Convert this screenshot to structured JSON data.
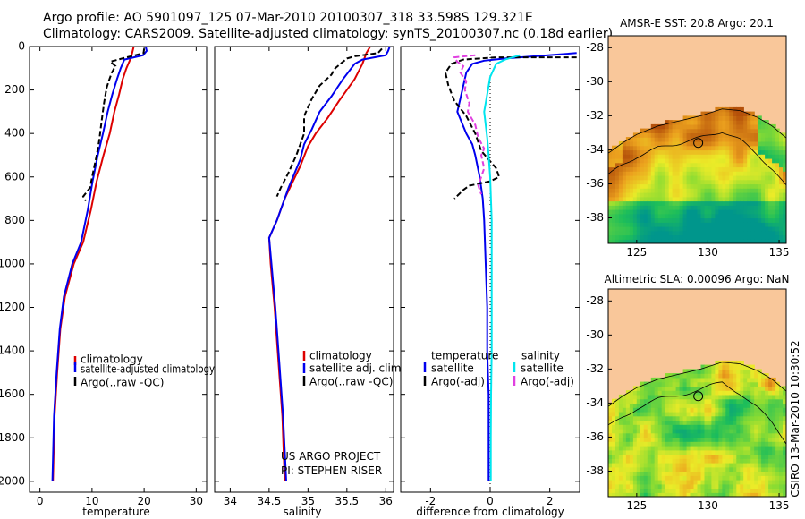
{
  "header": {
    "line1": "Argo profile: AO 5901097_125 07-Mar-2010 20100307_318 33.598S 129.321E",
    "line2": "Climatology: CARS2009. Satellite-adjusted climatology: synTS_20100307.nc (0.18d earlier)"
  },
  "credit": "CSIRO 13-Mar-2010 10:30:52",
  "colors": {
    "climatology": "#dd0000",
    "satellite": "#0000ee",
    "argo": "#000000",
    "salinity_sat": "#00e5ee",
    "salinity_argo": "#e040e0",
    "land": "#f9c79a"
  },
  "chart_data": [
    {
      "type": "line",
      "id": "temperature",
      "xlabel": "temperature",
      "ylabel": "",
      "xlim": [
        -2,
        32
      ],
      "ylim": [
        2050,
        0
      ],
      "xticks": [
        0,
        10,
        20,
        30
      ],
      "yticks": [
        0,
        200,
        400,
        600,
        800,
        1000,
        1200,
        1400,
        1600,
        1800,
        2000
      ],
      "legend": [
        "climatology",
        "satellite-adjusted climatology",
        "Argo(..raw -QC)"
      ],
      "series": [
        {
          "name": "climatology",
          "color": "#dd0000",
          "dash": "",
          "points": [
            [
              18,
              0
            ],
            [
              17.5,
              50
            ],
            [
              16.6,
              100
            ],
            [
              15.9,
              150
            ],
            [
              15.2,
              220
            ],
            [
              14.3,
              300
            ],
            [
              13.4,
              400
            ],
            [
              12.2,
              500
            ],
            [
              10.9,
              620
            ],
            [
              9.8,
              750
            ],
            [
              8.3,
              900
            ],
            [
              6.5,
              1000
            ],
            [
              4.8,
              1150
            ],
            [
              3.9,
              1300
            ],
            [
              3.3,
              1500
            ],
            [
              2.8,
              1700
            ],
            [
              2.5,
              2000
            ]
          ]
        },
        {
          "name": "satellite-adjusted climatology",
          "color": "#0000ee",
          "dash": "",
          "points": [
            [
              20.3,
              0
            ],
            [
              20.5,
              20
            ],
            [
              19.8,
              40
            ],
            [
              16.2,
              60
            ],
            [
              15.5,
              100
            ],
            [
              14.8,
              150
            ],
            [
              13.9,
              220
            ],
            [
              13.0,
              300
            ],
            [
              12.1,
              400
            ],
            [
              11.1,
              500
            ],
            [
              10.1,
              620
            ],
            [
              9.2,
              750
            ],
            [
              7.9,
              900
            ],
            [
              6.2,
              1000
            ],
            [
              4.6,
              1150
            ],
            [
              3.8,
              1300
            ],
            [
              3.2,
              1500
            ],
            [
              2.7,
              1700
            ],
            [
              2.4,
              2000
            ]
          ]
        },
        {
          "name": "Argo(..raw -QC)",
          "color": "#000000",
          "dash": "6,3",
          "points": [
            [
              20.0,
              10
            ],
            [
              19.9,
              30
            ],
            [
              15.0,
              60
            ],
            [
              13.5,
              70
            ],
            [
              14.5,
              90
            ],
            [
              13.8,
              120
            ],
            [
              13.2,
              160
            ],
            [
              12.8,
              190
            ],
            [
              12.3,
              260
            ],
            [
              11.8,
              350
            ],
            [
              11.4,
              430
            ],
            [
              10.9,
              500
            ],
            [
              10.2,
              580
            ],
            [
              9.6,
              650
            ],
            [
              8.3,
              690
            ],
            [
              8.8,
              710
            ]
          ]
        }
      ]
    },
    {
      "type": "line",
      "id": "salinity",
      "xlabel": "salinity",
      "xlim": [
        33.8,
        36.1
      ],
      "ylim": [
        2050,
        0
      ],
      "xticks": [
        34,
        34.5,
        35,
        35.5,
        36
      ],
      "legend": [
        "climatology",
        "satellite adj. clim.",
        "Argo(..raw -QC)"
      ],
      "annotation": [
        "US ARGO PROJECT",
        "PI: STEPHEN RISER"
      ],
      "series": [
        {
          "name": "climatology",
          "color": "#dd0000",
          "dash": "",
          "points": [
            [
              35.8,
              0
            ],
            [
              35.75,
              30
            ],
            [
              35.7,
              80
            ],
            [
              35.6,
              150
            ],
            [
              35.4,
              250
            ],
            [
              35.25,
              330
            ],
            [
              35.1,
              400
            ],
            [
              35.0,
              460
            ],
            [
              34.9,
              550
            ],
            [
              34.7,
              700
            ],
            [
              34.6,
              800
            ],
            [
              34.5,
              880
            ],
            [
              34.52,
              1000
            ],
            [
              34.57,
              1200
            ],
            [
              34.62,
              1450
            ],
            [
              34.67,
              1700
            ],
            [
              34.7,
              2000
            ]
          ]
        },
        {
          "name": "satellite adj. clim.",
          "color": "#0000ee",
          "dash": "",
          "points": [
            [
              36.05,
              0
            ],
            [
              36.03,
              20
            ],
            [
              36.0,
              40
            ],
            [
              35.7,
              60
            ],
            [
              35.6,
              80
            ],
            [
              35.45,
              150
            ],
            [
              35.3,
              230
            ],
            [
              35.15,
              300
            ],
            [
              35.05,
              380
            ],
            [
              34.95,
              450
            ],
            [
              34.9,
              520
            ],
            [
              34.75,
              650
            ],
            [
              34.6,
              800
            ],
            [
              34.5,
              880
            ],
            [
              34.53,
              1000
            ],
            [
              34.58,
              1200
            ],
            [
              34.63,
              1450
            ],
            [
              34.68,
              1700
            ],
            [
              34.72,
              2000
            ]
          ]
        },
        {
          "name": "Argo(..raw -QC)",
          "color": "#000000",
          "dash": "6,3",
          "points": [
            [
              35.95,
              10
            ],
            [
              35.9,
              30
            ],
            [
              35.6,
              45
            ],
            [
              35.5,
              55
            ],
            [
              35.45,
              70
            ],
            [
              35.4,
              85
            ],
            [
              35.35,
              100
            ],
            [
              35.3,
              130
            ],
            [
              35.15,
              180
            ],
            [
              35.05,
              240
            ],
            [
              34.95,
              320
            ],
            [
              34.95,
              400
            ],
            [
              34.9,
              450
            ],
            [
              34.85,
              500
            ],
            [
              34.75,
              580
            ],
            [
              34.65,
              650
            ],
            [
              34.6,
              690
            ]
          ]
        }
      ]
    },
    {
      "type": "line",
      "id": "difference",
      "xlabel": "difference from climatology",
      "xlim": [
        -3,
        3
      ],
      "ylim": [
        2050,
        0
      ],
      "xticks": [
        -2,
        0,
        2
      ],
      "legend_groups": [
        {
          "title": "temperature",
          "entries": [
            "satellite",
            "Argo(-adj)"
          ]
        },
        {
          "title": "salinity",
          "entries": [
            "satellite",
            "Argo(-adj)"
          ]
        }
      ],
      "series": [
        {
          "name": "temperature satellite",
          "color": "#0000ee",
          "dash": "",
          "points": [
            [
              2.9,
              30
            ],
            [
              1.5,
              45
            ],
            [
              0.5,
              55
            ],
            [
              -0.2,
              65
            ],
            [
              -0.6,
              80
            ],
            [
              -0.8,
              120
            ],
            [
              -0.9,
              180
            ],
            [
              -1.1,
              300
            ],
            [
              -0.8,
              400
            ],
            [
              -0.6,
              450
            ],
            [
              -0.5,
              500
            ],
            [
              -0.35,
              600
            ],
            [
              -0.25,
              700
            ],
            [
              -0.2,
              800
            ],
            [
              -0.15,
              1000
            ],
            [
              -0.1,
              1200
            ],
            [
              -0.1,
              1400
            ],
            [
              -0.05,
              1600
            ],
            [
              -0.05,
              1800
            ],
            [
              -0.05,
              2000
            ]
          ]
        },
        {
          "name": "temperature Argo(-adj)",
          "color": "#000000",
          "dash": "6,3",
          "points": [
            [
              2.9,
              50
            ],
            [
              0.2,
              50
            ],
            [
              -0.9,
              60
            ],
            [
              -1.3,
              80
            ],
            [
              -1.5,
              120
            ],
            [
              -1.4,
              180
            ],
            [
              -1.2,
              250
            ],
            [
              -0.8,
              320
            ],
            [
              -0.5,
              400
            ],
            [
              -0.3,
              480
            ],
            [
              0.2,
              560
            ],
            [
              0.3,
              600
            ],
            [
              0,
              620
            ],
            [
              -0.7,
              640
            ],
            [
              -0.9,
              660
            ],
            [
              -1.2,
              700
            ]
          ]
        },
        {
          "name": "salinity satellite",
          "color": "#00e5ee",
          "dash": "",
          "points": [
            [
              1.0,
              40
            ],
            [
              0.5,
              60
            ],
            [
              0.2,
              80
            ],
            [
              0,
              140
            ],
            [
              -0.1,
              220
            ],
            [
              -0.2,
              300
            ],
            [
              -0.1,
              420
            ],
            [
              -0.05,
              500
            ],
            [
              0,
              600
            ],
            [
              0.05,
              800
            ],
            [
              0.05,
              1000
            ],
            [
              0.05,
              1200
            ],
            [
              0.05,
              1400
            ],
            [
              0.03,
              1600
            ],
            [
              0.02,
              1800
            ],
            [
              0.02,
              2000
            ]
          ]
        },
        {
          "name": "salinity Argo(-adj)",
          "color": "#e040e0",
          "dash": "6,3",
          "points": [
            [
              -0.5,
              40
            ],
            [
              -1.2,
              50
            ],
            [
              -1.1,
              70
            ],
            [
              -0.9,
              90
            ],
            [
              -1.0,
              120
            ],
            [
              -0.8,
              160
            ],
            [
              -0.85,
              200
            ],
            [
              -0.7,
              260
            ],
            [
              -0.75,
              300
            ],
            [
              -0.5,
              360
            ],
            [
              -0.4,
              420
            ],
            [
              -0.2,
              470
            ],
            [
              -0.3,
              500
            ],
            [
              -0.2,
              560
            ],
            [
              -0.3,
              600
            ],
            [
              -0.4,
              640
            ],
            [
              -0.3,
              680
            ]
          ]
        }
      ]
    },
    {
      "type": "heatmap",
      "id": "sst_map",
      "title": "AMSR-E SST: 20.8 Argo: 20.1",
      "xlim": [
        123,
        135.5
      ],
      "ylim": [
        -39.5,
        -27.3
      ],
      "xticks": [
        125,
        130,
        135
      ],
      "yticks": [
        -28,
        -30,
        -32,
        -34,
        -36,
        -38
      ],
      "land_below_lat": -31.5,
      "marker": {
        "lon": 129.321,
        "lat": -33.598
      }
    },
    {
      "type": "heatmap",
      "id": "sla_map",
      "title": "Altimetric SLA: 0.00096 Argo: NaN",
      "xlim": [
        123,
        135.5
      ],
      "ylim": [
        -39.5,
        -27.3
      ],
      "xticks": [
        125,
        130,
        135
      ],
      "yticks": [
        -28,
        -30,
        -32,
        -34,
        -36,
        -38
      ],
      "land_below_lat": -31.5,
      "marker": {
        "lon": 129.321,
        "lat": -33.598
      }
    }
  ]
}
